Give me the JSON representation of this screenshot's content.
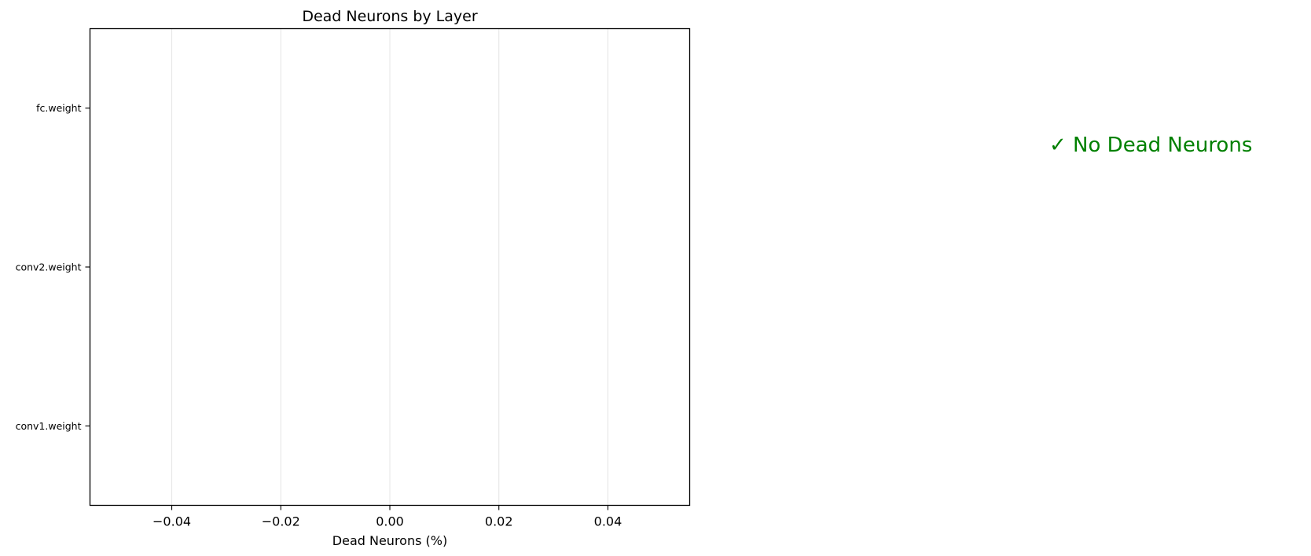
{
  "chart_data": {
    "type": "bar",
    "orientation": "horizontal",
    "title": "Dead Neurons by Layer",
    "xlabel": "Dead Neurons (%)",
    "ylabel": "",
    "categories": [
      "conv1.weight",
      "conv2.weight",
      "fc.weight"
    ],
    "values": [
      0,
      0,
      0
    ],
    "xlim": [
      -0.055,
      0.055
    ],
    "xticks": [
      -0.04,
      -0.02,
      0.0,
      0.02,
      0.04
    ],
    "xtick_labels": [
      "−0.04",
      "−0.02",
      "0.00",
      "0.02",
      "0.04"
    ],
    "grid": "x",
    "legend": "none"
  },
  "status": {
    "message": "✓ No Dead Neurons",
    "color": "#008000"
  },
  "colors": {
    "axes": "#000000",
    "grid": "#e6e6e6",
    "background": "#ffffff",
    "bar": "#ef5350"
  }
}
